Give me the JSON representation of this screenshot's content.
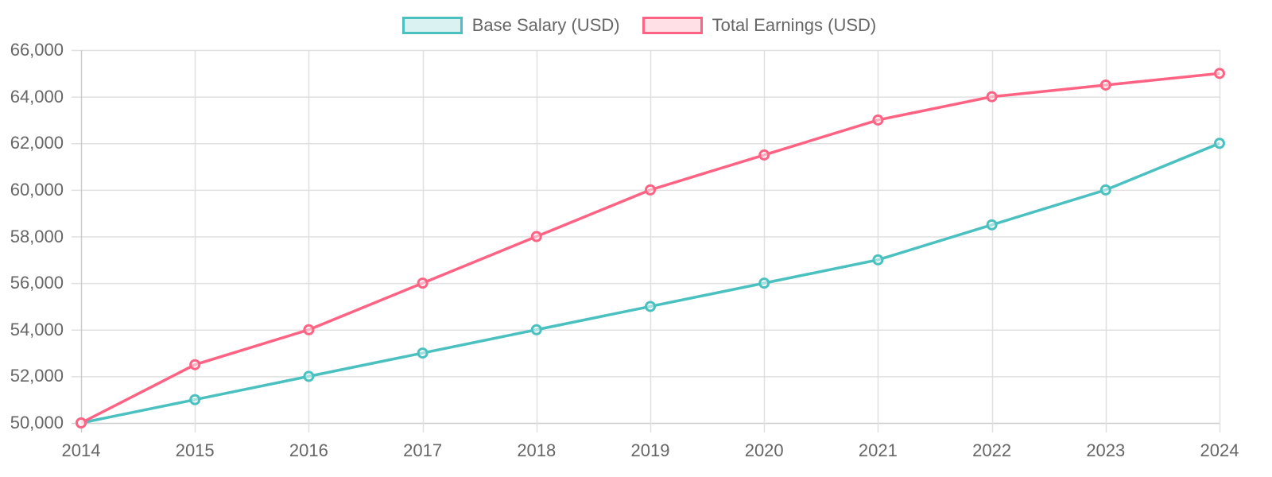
{
  "legend": {
    "items": [
      {
        "label": "Base Salary (USD)",
        "border": "#4bc0c0",
        "fill": "#dbf2f2"
      },
      {
        "label": "Total Earnings (USD)",
        "border": "#ff6384",
        "fill": "#ffe0e6"
      }
    ]
  },
  "axes": {
    "y_ticks": [
      "66,000",
      "64,000",
      "62,000",
      "60,000",
      "58,000",
      "56,000",
      "54,000",
      "52,000",
      "50,000"
    ],
    "x_ticks": [
      "2014",
      "2015",
      "2016",
      "2017",
      "2018",
      "2019",
      "2020",
      "2021",
      "2022",
      "2023",
      "2024"
    ]
  },
  "chart_data": {
    "type": "line",
    "title": "",
    "xlabel": "",
    "ylabel": "",
    "categories": [
      "2014",
      "2015",
      "2016",
      "2017",
      "2018",
      "2019",
      "2020",
      "2021",
      "2022",
      "2023",
      "2024"
    ],
    "series": [
      {
        "name": "Base Salary (USD)",
        "color": "#4bc0c0",
        "values": [
          50000,
          51000,
          52000,
          53000,
          54000,
          55000,
          56000,
          57000,
          58500,
          60000,
          62000
        ]
      },
      {
        "name": "Total Earnings (USD)",
        "color": "#ff6384",
        "values": [
          50000,
          52500,
          54000,
          56000,
          58000,
          60000,
          61500,
          63000,
          64000,
          64500,
          65000
        ]
      }
    ],
    "ylim": [
      50000,
      66000
    ],
    "y_step": 2000,
    "grid": true,
    "legend_position": "top"
  }
}
